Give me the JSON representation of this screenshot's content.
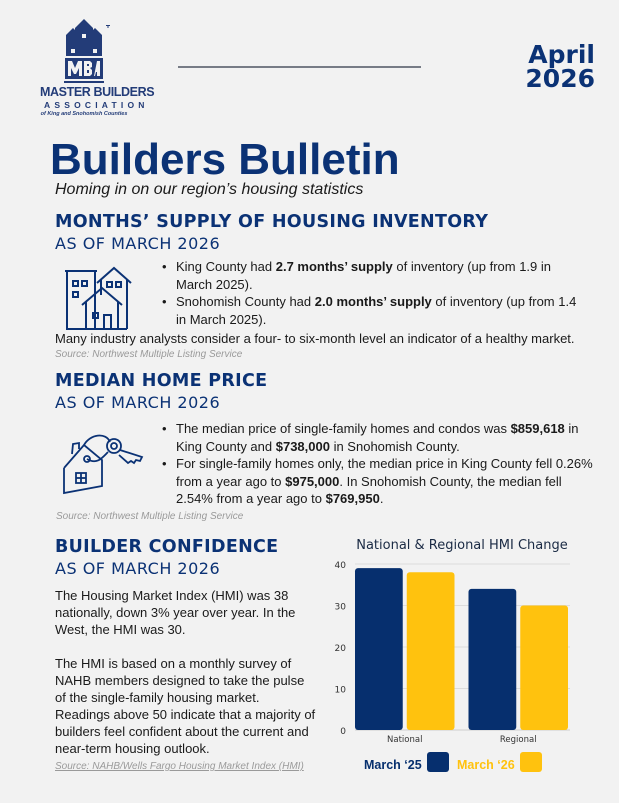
{
  "logo": {
    "line1": "MASTER BUILDERS",
    "line2": "ASSOCIATION",
    "line3": "of King and Snohomish Counties",
    "mark": "MBA",
    "tm": "TM"
  },
  "date": {
    "month": "April",
    "year": "2026"
  },
  "title": "Builders Bulletin",
  "subtitle": "Homing in on our region’s housing statistics",
  "colors": {
    "navy": "#062f6e",
    "yellow": "#ffc20e",
    "heading": "#0b3275",
    "background": "#f2f2f2"
  },
  "supply": {
    "heading": "MONTHS’ SUPPLY OF HOUSING INVENTORY",
    "subheading": "AS OF MARCH 2026",
    "icon": "buildings-icon",
    "bullets": [
      [
        "King County had ",
        "2.7 months’ supply",
        " of inventory (up from 1.9 in March 2025)."
      ],
      [
        "Snohomish County had ",
        "2.0 months’ supply",
        " of inventory (up from 1.4 in March 2025)."
      ]
    ],
    "note": "Many industry analysts consider a four- to six-month level an indicator of a healthy market.",
    "source": "Source: Northwest Multiple Listing Service"
  },
  "price": {
    "heading": "MEDIAN HOME PRICE",
    "subheading": "AS OF MARCH 2026",
    "icon": "house-key-icon",
    "bullets": [
      [
        "The median price of single-family homes and condos was ",
        "$859,618",
        " in King County and ",
        "$738,000",
        " in Snohomish County."
      ],
      [
        "For single-family homes only, the median price in King County fell 0.26% from a year ago to ",
        "$975,000",
        ". In Snohomish County, the median fell 2.54% from a year ago to ",
        "$769,950",
        "."
      ]
    ],
    "source": "Source: Northwest Multiple Listing Service"
  },
  "confidence": {
    "heading": "BUILDER CONFIDENCE",
    "subheading": "AS OF MARCH 2026",
    "para1": "The Housing Market Index (HMI) was 38 nationally, down 3% year over year. In the West, the HMI was 30.",
    "para2": "The HMI is based on a monthly survey of NAHB members designed to take the pulse of the single-family housing market. Readings above 50 indicate that a majority of builders feel confident about the current and near-term housing outlook.",
    "source": "Source: NAHB/Wells Fargo Housing Market Index (HMI)"
  },
  "chart_data": {
    "type": "bar",
    "title": "National & Regional HMI Change",
    "categories": [
      "National",
      "Regional"
    ],
    "series": [
      {
        "name": "March ‘25",
        "values": [
          39,
          34
        ],
        "color": "#062f6e"
      },
      {
        "name": "March ‘26",
        "values": [
          38,
          30
        ],
        "color": "#ffc20e"
      }
    ],
    "ylim": [
      0,
      40
    ],
    "yticks": [
      "0",
      "10",
      "20",
      "30",
      "40"
    ],
    "grid": true,
    "legend": "bottom"
  }
}
